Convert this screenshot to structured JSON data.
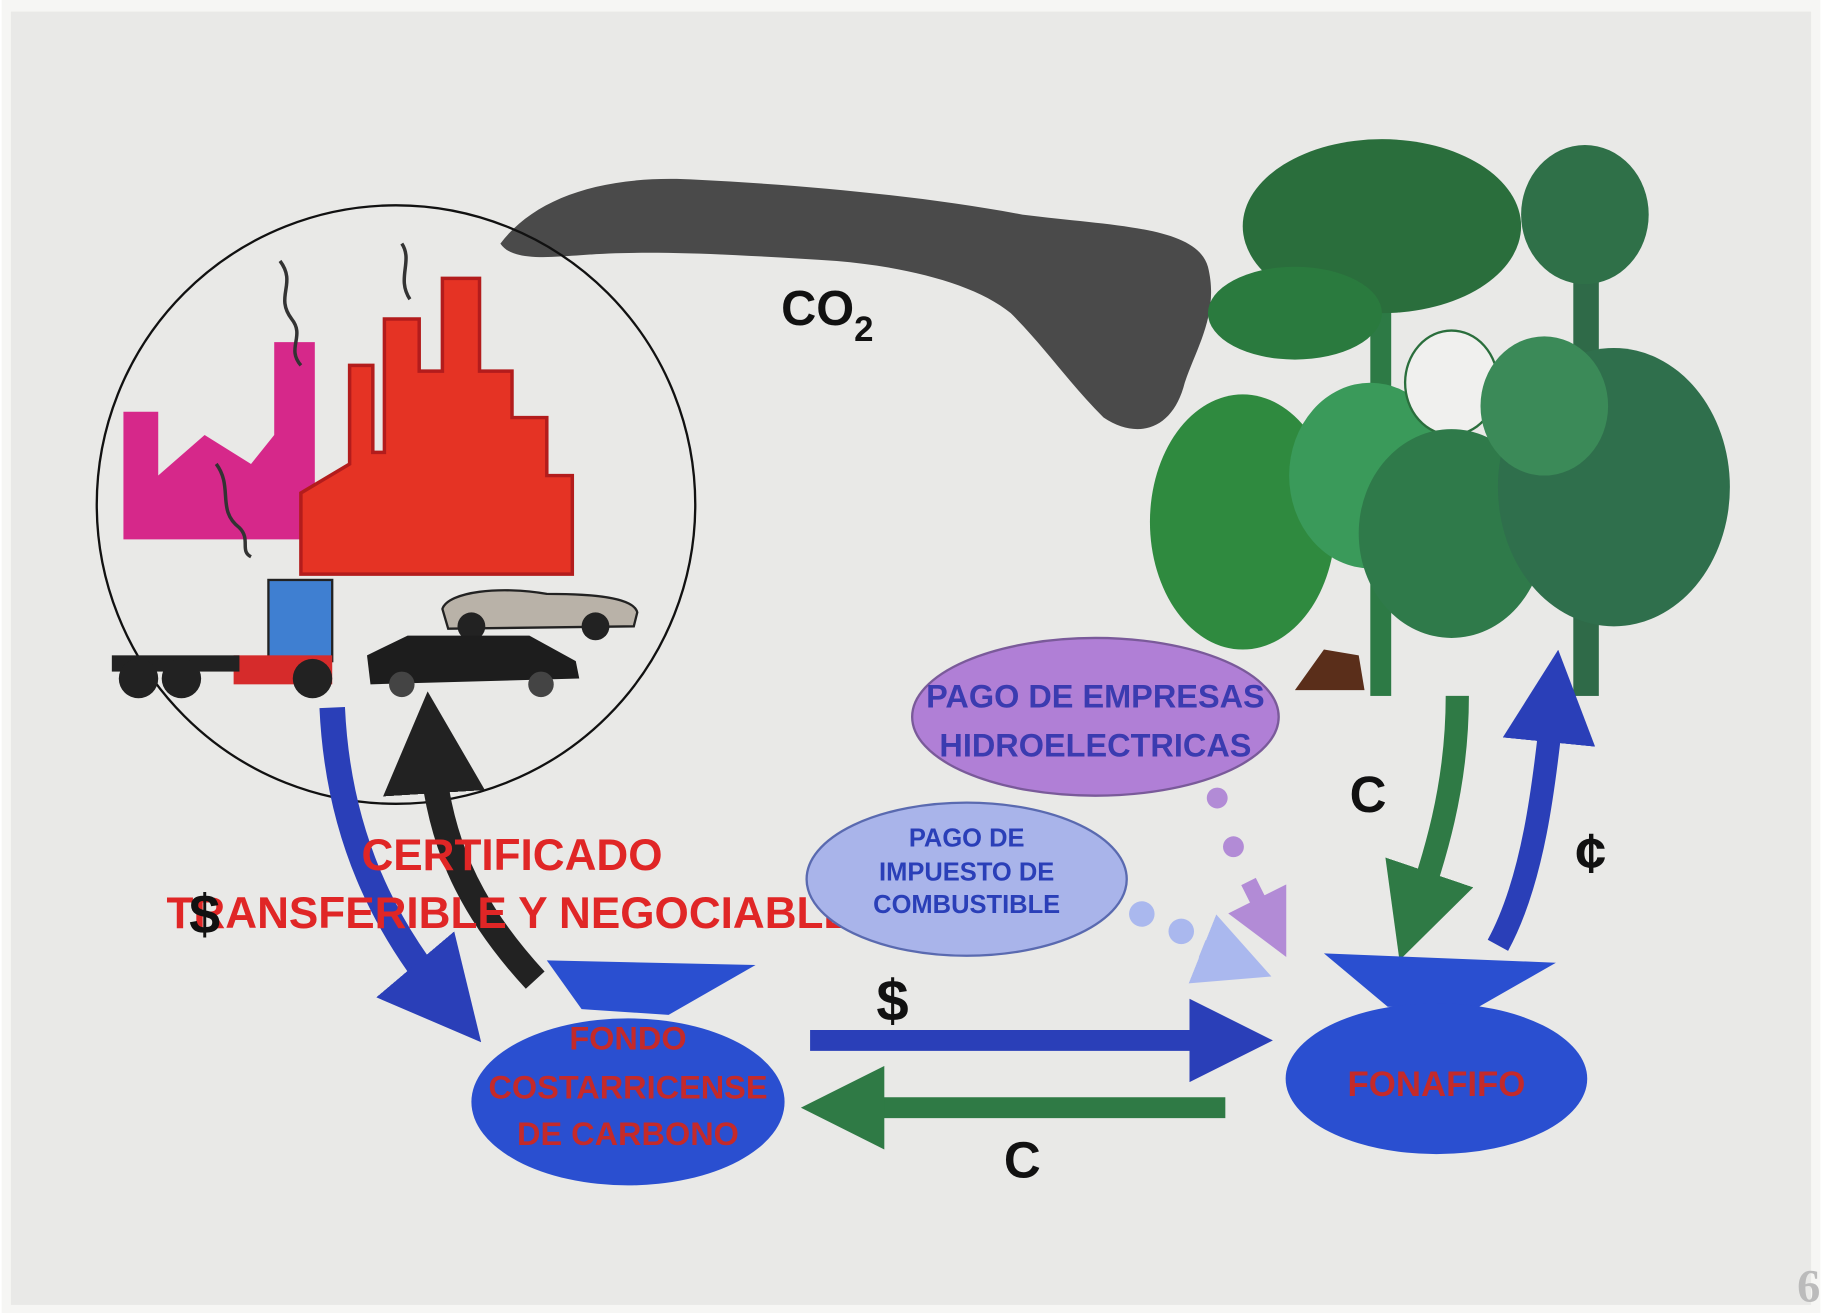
{
  "co2": {
    "text": "CO",
    "subscript": "2"
  },
  "certificate": {
    "currency": "$",
    "lines": [
      "CERTIFICADO",
      "TRANSFERIBLE Y NEGOCIABLE"
    ]
  },
  "fund": {
    "lines": [
      "FONDO",
      "COSTARRICENSE",
      "DE CARBONO"
    ]
  },
  "fund_to_fonafifo": "$",
  "fonafifo_to_fund": "C",
  "forest_to_fonafifo": "C",
  "fonafifo_to_forest": "¢",
  "hydro_payment": {
    "lines": [
      "PAGO DE EMPRESAS",
      "HIDROELECTRICAS"
    ]
  },
  "fuel_tax": {
    "lines": [
      "PAGO DE",
      "IMPUESTO DE",
      "COMBUSTIBLE"
    ]
  },
  "fonafifo": "FONAFIFO",
  "page_number": "6"
}
